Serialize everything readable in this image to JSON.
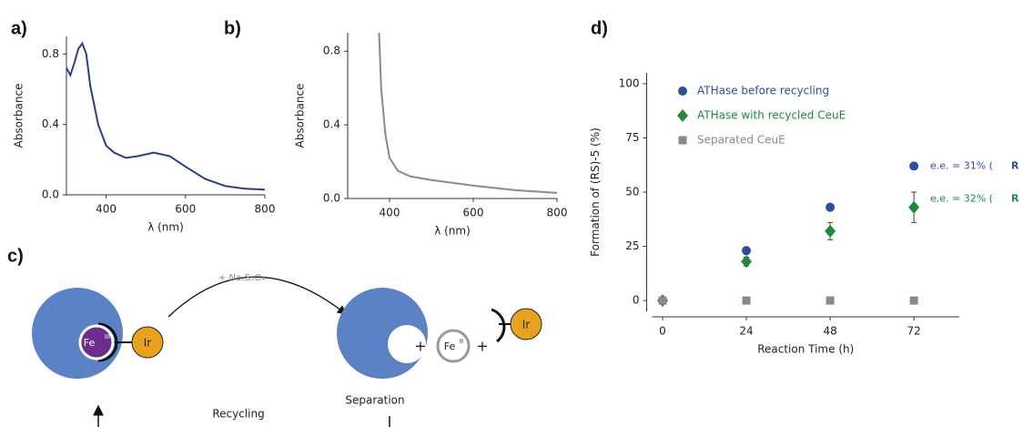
{
  "chart_data": [
    {
      "type": "line",
      "panel_label": "a)",
      "xlabel": "λ (nm)",
      "ylabel": "Absorbance",
      "x": [
        300,
        310,
        320,
        330,
        340,
        350,
        360,
        380,
        400,
        420,
        450,
        480,
        520,
        560,
        600,
        650,
        700,
        750,
        800
      ],
      "series": [
        {
          "color": "#2e3b8f",
          "values": [
            0.72,
            0.68,
            0.75,
            0.83,
            0.86,
            0.8,
            0.62,
            0.4,
            0.28,
            0.24,
            0.21,
            0.22,
            0.24,
            0.22,
            0.16,
            0.09,
            0.05,
            0.035,
            0.03
          ]
        }
      ],
      "xlim": [
        300,
        800
      ],
      "ylim": [
        0,
        0.9
      ],
      "xticks": [
        400,
        600,
        800
      ],
      "yticks": [
        {
          "value": 0,
          "label": "0.0"
        },
        0.4,
        0.8
      ]
    },
    {
      "type": "line",
      "panel_label": "b)",
      "xlabel": "λ (nm)",
      "ylabel": "Absorbance",
      "x": [
        375,
        380,
        390,
        400,
        420,
        450,
        500,
        600,
        700,
        800
      ],
      "series": [
        {
          "color": "#8a8a8a",
          "values": [
            0.9,
            0.6,
            0.35,
            0.22,
            0.15,
            0.12,
            0.1,
            0.07,
            0.045,
            0.03
          ]
        }
      ],
      "xlim": [
        300,
        800
      ],
      "ylim": [
        0,
        0.9
      ],
      "xticks": [
        400,
        600,
        800
      ],
      "yticks": [
        {
          "value": 0,
          "label": "0.0"
        },
        0.4,
        0.8
      ]
    },
    {
      "type": "scatter",
      "panel_label": "d)",
      "xlabel": "Reaction Time (h)",
      "ylabel": "Formation of (RS)-5 (%)",
      "x": [
        0,
        24,
        48,
        72
      ],
      "series": [
        {
          "name": "ATHase before recycling",
          "color": "#2c4ea0",
          "marker": "circle",
          "values": [
            0,
            23,
            43,
            62
          ]
        },
        {
          "name": "ATHase with recycled CeuE",
          "color": "#1f8a3a",
          "marker": "diamond",
          "values": [
            0,
            18,
            32,
            43
          ],
          "errors": [
            0,
            2,
            4,
            7
          ]
        },
        {
          "name": "Separated CeuE",
          "color": "#8a8a8a",
          "marker": "square",
          "values": [
            0,
            0,
            0,
            0
          ]
        }
      ],
      "annotations": [
        {
          "text": "e.e. = 31% (",
          "emph": "R"
        },
        {
          "text": "e.e. = 32% (",
          "emph": "R"
        }
      ],
      "xlim": [
        -3,
        85
      ],
      "ylim": [
        -5,
        105
      ],
      "xticks": [
        0,
        24,
        48,
        72
      ],
      "yticks": [
        0,
        25,
        50,
        75,
        100
      ]
    }
  ],
  "diagram": {
    "label": "c)",
    "reagent": "+ Na₂S₂O₄",
    "fe3": "Fe",
    "fe3_ox": "III",
    "ir": "Ir",
    "plus": "+",
    "fe2": "Fe",
    "fe2_ox": "II",
    "ir2": "Ir",
    "plus2": "+",
    "separation": "Separation",
    "recycling": "Recycling"
  }
}
